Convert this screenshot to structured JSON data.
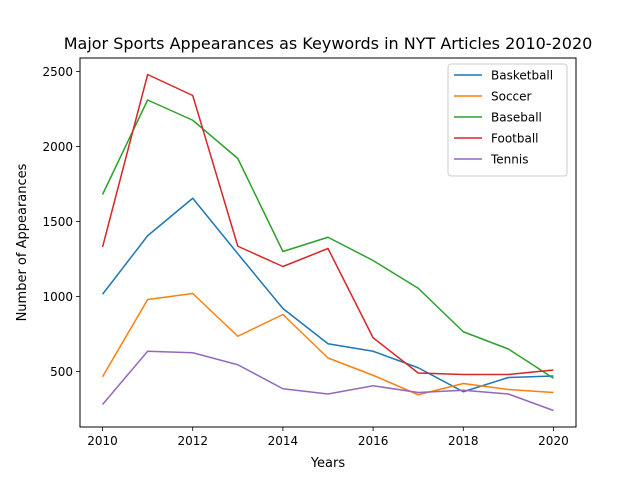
{
  "chart_data": {
    "type": "line",
    "title": "Major Sports Appearances as Keywords in NYT Articles 2010-2020",
    "xlabel": "Years",
    "ylabel": "Number of Appearances",
    "x": [
      2010,
      2011,
      2012,
      2013,
      2014,
      2015,
      2016,
      2017,
      2018,
      2019,
      2020
    ],
    "xlim": [
      2009.5,
      2020.5
    ],
    "ylim": [
      130,
      2590
    ],
    "xticks": [
      2010,
      2012,
      2014,
      2016,
      2018,
      2020
    ],
    "yticks": [
      500,
      1000,
      1500,
      2000,
      2500
    ],
    "grid": false,
    "legend_position": "top-right",
    "series": [
      {
        "name": "Basketball",
        "color": "#1f77b4",
        "values": [
          1015,
          1405,
          1655,
          1285,
          920,
          685,
          635,
          525,
          365,
          460,
          470
        ]
      },
      {
        "name": "Soccer",
        "color": "#ff7f0e",
        "values": [
          465,
          980,
          1020,
          735,
          880,
          590,
          475,
          345,
          420,
          380,
          360
        ]
      },
      {
        "name": "Baseball",
        "color": "#2ca02c",
        "values": [
          1680,
          2310,
          2175,
          1920,
          1300,
          1395,
          1240,
          1055,
          765,
          650,
          455
        ]
      },
      {
        "name": "Football",
        "color": "#d62728",
        "values": [
          1330,
          2480,
          2340,
          1335,
          1200,
          1320,
          725,
          490,
          480,
          480,
          510
        ]
      },
      {
        "name": "Tennis",
        "color": "#9467bd",
        "values": [
          280,
          635,
          625,
          545,
          385,
          350,
          405,
          360,
          375,
          350,
          240
        ]
      }
    ]
  }
}
